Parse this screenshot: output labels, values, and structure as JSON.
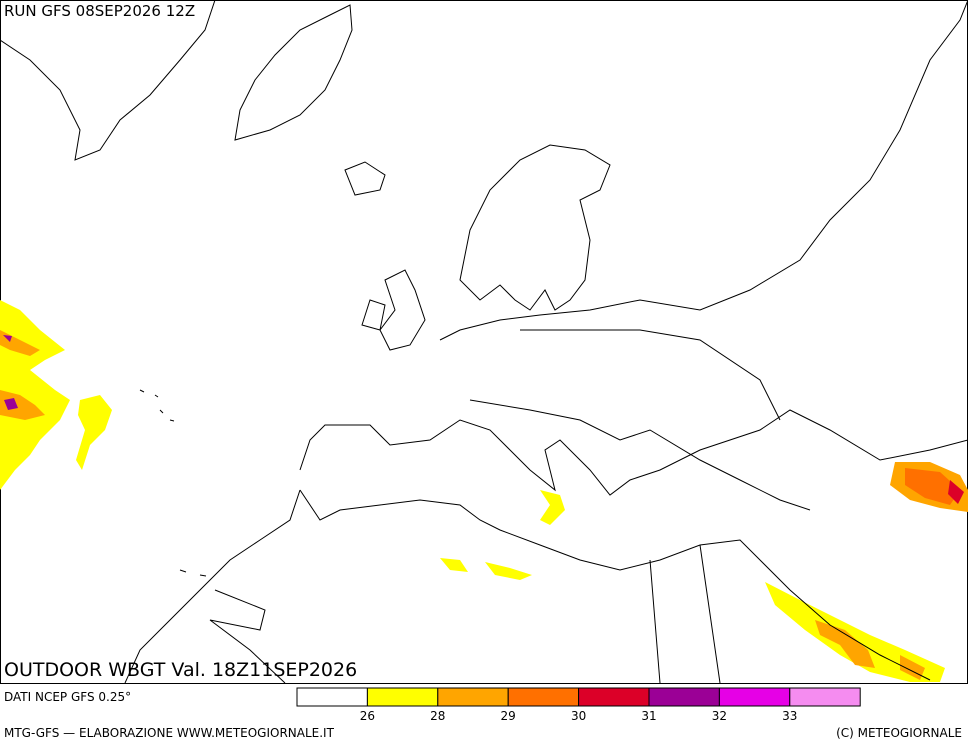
{
  "header": {
    "run": "RUN GFS 08SEP2026 12Z"
  },
  "map": {
    "title": "OUTDOOR WBGT Val. 18Z11SEP2026"
  },
  "legend": {
    "source": "DATI NCEP GFS 0.25°",
    "colors": [
      "#ffffff",
      "#ffff00",
      "#ffa500",
      "#ff7000",
      "#dc0028",
      "#9b0096",
      "#e600e6",
      "#f58cf0"
    ],
    "labels": [
      "26",
      "28",
      "29",
      "30",
      "31",
      "32",
      "33"
    ]
  },
  "footer": {
    "left": "MTG-GFS — ELABORAZIONE WWW.METEOGIORNALE.IT",
    "right": "(C) METEOGIORNALE"
  }
}
